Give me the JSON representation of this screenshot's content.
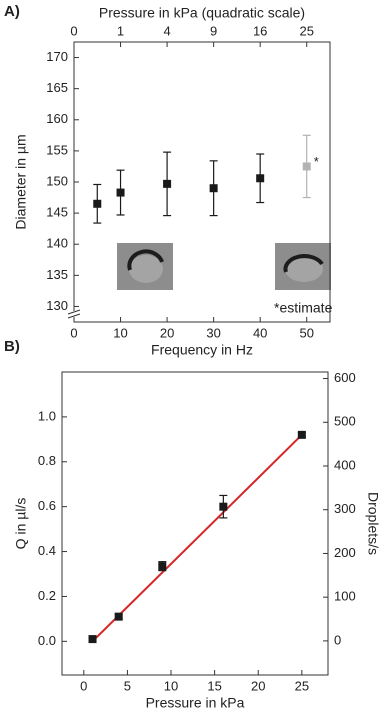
{
  "chart_data": [
    {
      "type": "scatter",
      "panel_label": "A)",
      "xlabel": "Frequency in Hz",
      "ylabel": "Diameter in µm",
      "x2label": "Pressure in kPa (quadratic scale)",
      "x2scale": "quadratic",
      "xlim": [
        0,
        55
      ],
      "xticks": [
        0,
        10,
        20,
        30,
        40,
        50
      ],
      "x2lim": [
        0,
        30.25
      ],
      "x2ticks": [
        0,
        1,
        4,
        9,
        16,
        25
      ],
      "ylim": [
        127.5,
        172.5
      ],
      "yticks": [
        130,
        135,
        140,
        145,
        150,
        155,
        160,
        165,
        170
      ],
      "y_axis_break": true,
      "series": [
        {
          "x": [
            5,
            10,
            20,
            30,
            40,
            50
          ],
          "values": [
            146.5,
            148.3,
            149.7,
            149.0,
            150.6,
            152.5
          ],
          "errors": [
            3.1,
            3.6,
            5.1,
            4.4,
            3.9,
            5.0
          ],
          "point_colors": [
            "#1a1a1a",
            "#1a1a1a",
            "#1a1a1a",
            "#1a1a1a",
            "#1a1a1a",
            "#b3b3b3"
          ]
        }
      ],
      "point_annotation": "*",
      "note": "*estimate"
    },
    {
      "type": "scatter",
      "panel_label": "B)",
      "xlabel": "Pressure in kPa",
      "ylabel": "Q in µl/s",
      "y2label": "Droplets/s",
      "xlim": [
        -2.5,
        28
      ],
      "xticks": [
        0,
        5,
        10,
        15,
        20,
        25
      ],
      "ylim": [
        -0.15,
        1.2
      ],
      "yticks": [
        {
          "value": 0,
          "label": "0.0"
        },
        {
          "value": 0.2,
          "label": "0.2"
        },
        {
          "value": 0.4,
          "label": "0.4"
        },
        {
          "value": 0.6,
          "label": "0.6"
        },
        {
          "value": 0.8,
          "label": "0.8"
        },
        {
          "value": 1.0,
          "label": "1.0"
        }
      ],
      "y2lim": [
        -78,
        615
      ],
      "y2ticks": [
        0,
        100,
        200,
        300,
        400,
        500,
        600
      ],
      "series": [
        {
          "x": [
            1,
            4,
            9,
            16,
            25
          ],
          "values": [
            0.01,
            0.11,
            0.335,
            0.6,
            0.92
          ],
          "errors": [
            0.01,
            0.01,
            0.02,
            0.05,
            0.01
          ],
          "point_colors": [
            "#1a1a1a",
            "#1a1a1a",
            "#1a1a1a",
            "#1a1a1a",
            "#1a1a1a"
          ]
        }
      ],
      "fit_line": {
        "x": [
          1,
          25
        ],
        "values": [
          0.0,
          0.92
        ],
        "color": "#d62728"
      }
    }
  ]
}
